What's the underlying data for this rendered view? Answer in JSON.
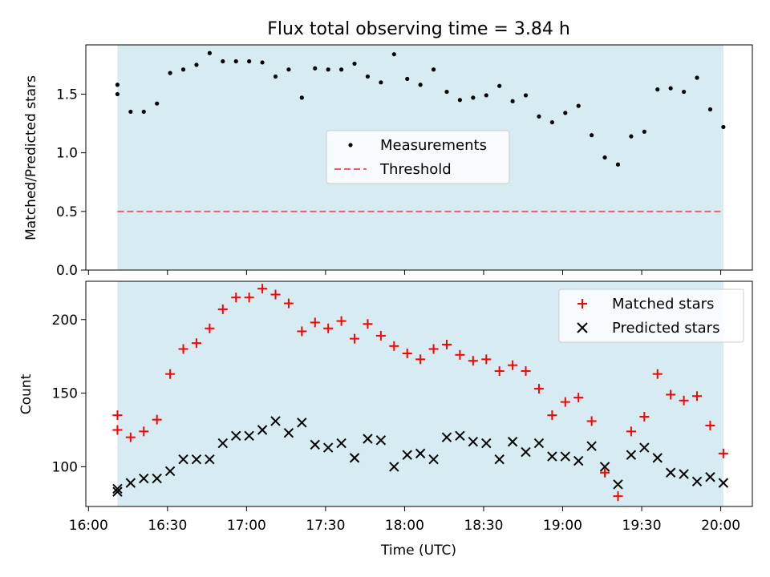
{
  "chart_data": [
    {
      "type": "scatter",
      "title": "Flux total observing time = 3.84 h",
      "xlabel": "",
      "ylabel": "Matched/Predicted stars",
      "ylim": [
        0,
        1.92
      ],
      "yticks": [
        "0.0",
        "0.5",
        "1.0",
        "1.5"
      ],
      "shaded_range": [
        "16:11",
        "20:01"
      ],
      "shade_color": "#add8e6",
      "legend_position": "center",
      "series": [
        {
          "name": "Measurements",
          "color": "#000000",
          "marker": "dot",
          "x": [
            "16:11",
            "16:11",
            "16:16",
            "16:21",
            "16:26",
            "16:31",
            "16:36",
            "16:41",
            "16:46",
            "16:51",
            "16:56",
            "17:01",
            "17:06",
            "17:11",
            "17:16",
            "17:21",
            "17:26",
            "17:31",
            "17:36",
            "17:41",
            "17:46",
            "17:51",
            "17:56",
            "18:01",
            "18:06",
            "18:11",
            "18:16",
            "18:21",
            "18:26",
            "18:31",
            "18:36",
            "18:41",
            "18:46",
            "18:51",
            "18:56",
            "19:01",
            "19:06",
            "19:11",
            "19:16",
            "19:21",
            "19:26",
            "19:31",
            "19:36",
            "19:41",
            "19:46",
            "19:51",
            "19:56",
            "20:01"
          ],
          "y": [
            1.5,
            1.58,
            1.35,
            1.35,
            1.42,
            1.68,
            1.71,
            1.75,
            1.85,
            1.78,
            1.78,
            1.78,
            1.77,
            1.65,
            1.71,
            1.47,
            1.72,
            1.71,
            1.71,
            1.76,
            1.65,
            1.6,
            1.84,
            1.63,
            1.58,
            1.71,
            1.52,
            1.45,
            1.47,
            1.49,
            1.57,
            1.44,
            1.49,
            1.31,
            1.26,
            1.34,
            1.4,
            1.15,
            0.96,
            0.9,
            1.14,
            1.18,
            1.54,
            1.55,
            1.52,
            1.64,
            1.37,
            1.22
          ]
        },
        {
          "name": "Threshold",
          "color": "#ee6060",
          "style": "dashed",
          "x": [
            "16:11",
            "20:01"
          ],
          "y": [
            0.5,
            0.5
          ]
        }
      ]
    },
    {
      "type": "scatter",
      "title": "",
      "xlabel": "Time (UTC)",
      "ylabel": "Count",
      "ylim": [
        73,
        226
      ],
      "yticks": [
        "100",
        "150",
        "200"
      ],
      "xticks": [
        "16:00",
        "16:30",
        "17:00",
        "17:30",
        "18:00",
        "18:30",
        "19:00",
        "19:30",
        "20:00"
      ],
      "xlim": [
        "15:59",
        "20:12"
      ],
      "shaded_range": [
        "16:11",
        "20:01"
      ],
      "shade_color": "#add8e6",
      "legend_position": "upper right",
      "series": [
        {
          "name": "Matched stars",
          "color": "#ff0000",
          "marker": "plus",
          "x": [
            "16:11",
            "16:11",
            "16:16",
            "16:21",
            "16:26",
            "16:31",
            "16:36",
            "16:41",
            "16:46",
            "16:51",
            "16:56",
            "17:01",
            "17:06",
            "17:11",
            "17:16",
            "17:21",
            "17:26",
            "17:31",
            "17:36",
            "17:41",
            "17:46",
            "17:51",
            "17:56",
            "18:01",
            "18:06",
            "18:11",
            "18:16",
            "18:21",
            "18:26",
            "18:31",
            "18:36",
            "18:41",
            "18:46",
            "18:51",
            "18:56",
            "19:01",
            "19:06",
            "19:11",
            "19:16",
            "19:21",
            "19:26",
            "19:31",
            "19:36",
            "19:41",
            "19:46",
            "19:51",
            "19:56",
            "20:01"
          ],
          "y": [
            125,
            135,
            120,
            124,
            132,
            163,
            180,
            184,
            194,
            207,
            215,
            215,
            221,
            217,
            211,
            192,
            198,
            194,
            199,
            187,
            197,
            189,
            182,
            177,
            173,
            180,
            183,
            176,
            172,
            173,
            165,
            169,
            165,
            153,
            135,
            144,
            147,
            131,
            96,
            80,
            124,
            134,
            163,
            149,
            145,
            148,
            128,
            109
          ]
        },
        {
          "name": "Predicted stars",
          "color": "#000000",
          "marker": "x",
          "x": [
            "16:11",
            "16:11",
            "16:16",
            "16:21",
            "16:26",
            "16:31",
            "16:36",
            "16:41",
            "16:46",
            "16:51",
            "16:56",
            "17:01",
            "17:06",
            "17:11",
            "17:16",
            "17:21",
            "17:26",
            "17:31",
            "17:36",
            "17:41",
            "17:46",
            "17:51",
            "17:56",
            "18:01",
            "18:06",
            "18:11",
            "18:16",
            "18:21",
            "18:26",
            "18:31",
            "18:36",
            "18:41",
            "18:46",
            "18:51",
            "18:56",
            "19:01",
            "19:06",
            "19:11",
            "19:16",
            "19:21",
            "19:26",
            "19:31",
            "19:36",
            "19:41",
            "19:46",
            "19:51",
            "19:56",
            "20:01"
          ],
          "y": [
            83,
            85,
            89,
            92,
            92,
            97,
            105,
            105,
            105,
            116,
            121,
            121,
            125,
            131,
            123,
            130,
            115,
            113,
            116,
            106,
            119,
            118,
            100,
            108,
            109,
            105,
            120,
            121,
            117,
            116,
            105,
            117,
            110,
            116,
            107,
            107,
            104,
            114,
            100,
            88,
            108,
            113,
            106,
            96,
            95,
            90,
            93,
            89
          ]
        }
      ]
    }
  ]
}
